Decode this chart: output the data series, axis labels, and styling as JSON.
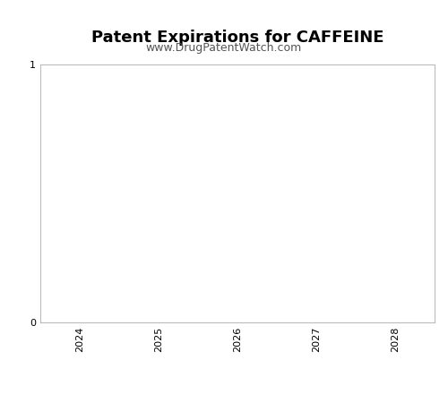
{
  "title": "Patent Expirations for CAFFEINE",
  "subtitle": "www.DrugPatentWatch.com",
  "x_ticks": [
    2024,
    2025,
    2026,
    2027,
    2028
  ],
  "xlim": [
    2023.5,
    2028.5
  ],
  "ylim": [
    0,
    1
  ],
  "y_ticks": [
    0,
    1
  ],
  "background_color": "#ffffff",
  "plot_bg_color": "#ffffff",
  "spine_color": "#bbbbbb",
  "title_fontsize": 13,
  "subtitle_fontsize": 9,
  "tick_fontsize": 8,
  "title_fontweight": "bold",
  "subtitle_color": "#555555"
}
